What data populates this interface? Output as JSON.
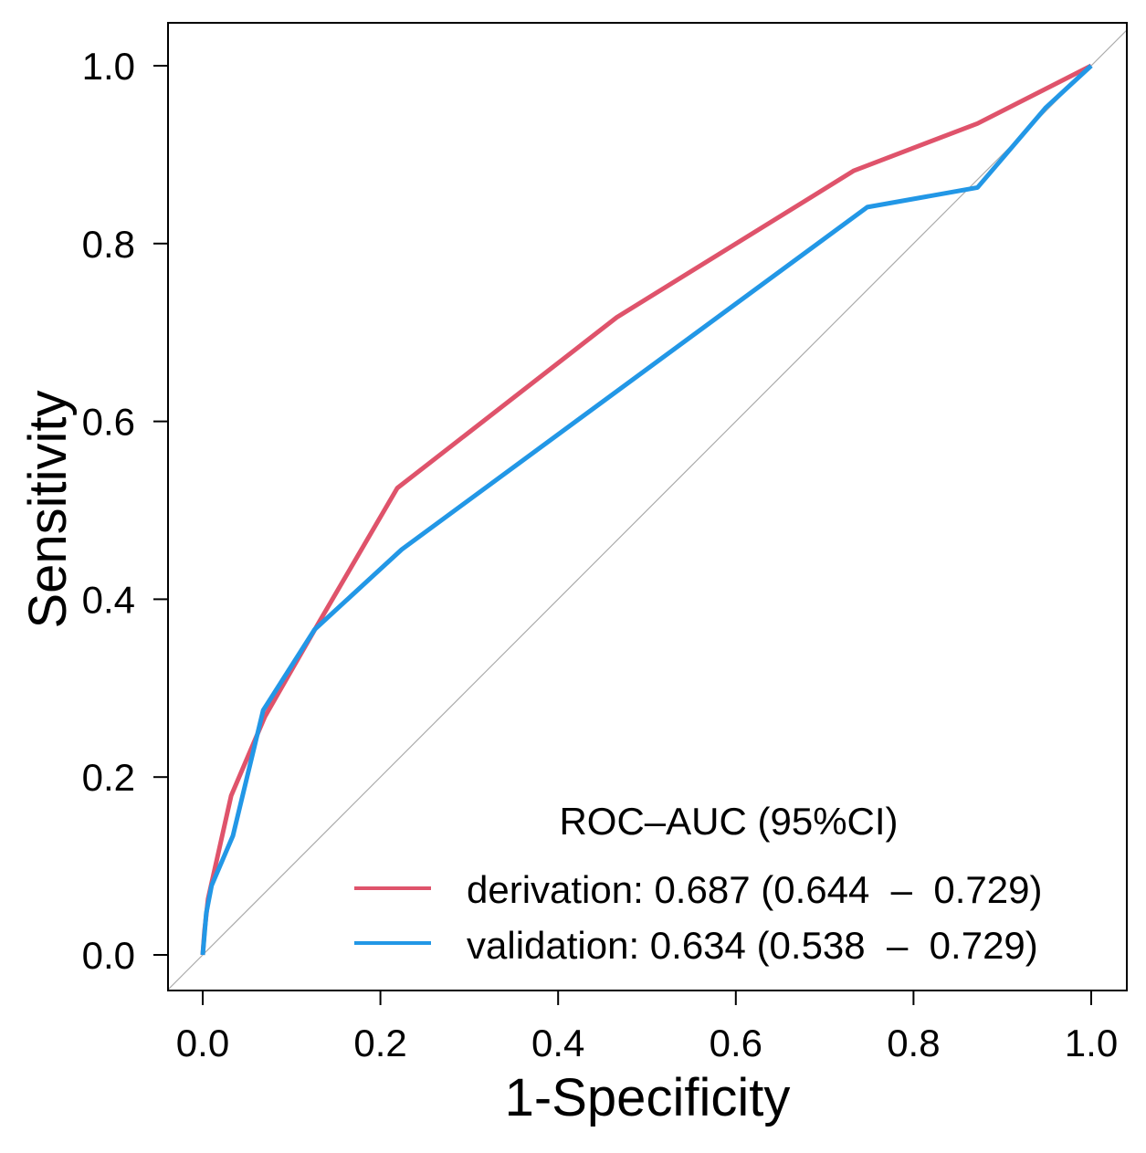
{
  "chart_data": {
    "type": "line",
    "title": "",
    "xlabel": "1-Specificity",
    "ylabel": "Sensitivity",
    "xlim": [
      0,
      1
    ],
    "ylim": [
      0,
      1
    ],
    "xticks": [
      "0.0",
      "0.2",
      "0.4",
      "0.6",
      "0.8",
      "1.0"
    ],
    "yticks": [
      "0.0",
      "0.2",
      "0.4",
      "0.6",
      "0.8",
      "1.0"
    ],
    "grid": false,
    "reference_line": "diagonal",
    "legend": {
      "title": "ROC–AUC (95%CI)",
      "placement": "bottom-right",
      "entries": [
        "derivation: 0.687 (0.644  –  0.729)",
        "validation: 0.634 (0.538  –  0.729)"
      ]
    },
    "series": [
      {
        "name": "derivation",
        "color": "#DF536B",
        "x": [
          0,
          0.002,
          0.006,
          0.032,
          0.07,
          0.132,
          0.219,
          0.466,
          0.733,
          0.872,
          1.0
        ],
        "y": [
          0,
          0.027,
          0.063,
          0.179,
          0.268,
          0.376,
          0.525,
          0.717,
          0.882,
          0.935,
          1.0
        ]
      },
      {
        "name": "validation",
        "color": "#2297E6",
        "x": [
          0,
          0.004,
          0.01,
          0.034,
          0.068,
          0.126,
          0.224,
          0.748,
          0.872,
          0.949,
          1.0
        ],
        "y": [
          0,
          0.047,
          0.078,
          0.134,
          0.275,
          0.366,
          0.456,
          0.841,
          0.863,
          0.953,
          1.0
        ]
      }
    ]
  }
}
